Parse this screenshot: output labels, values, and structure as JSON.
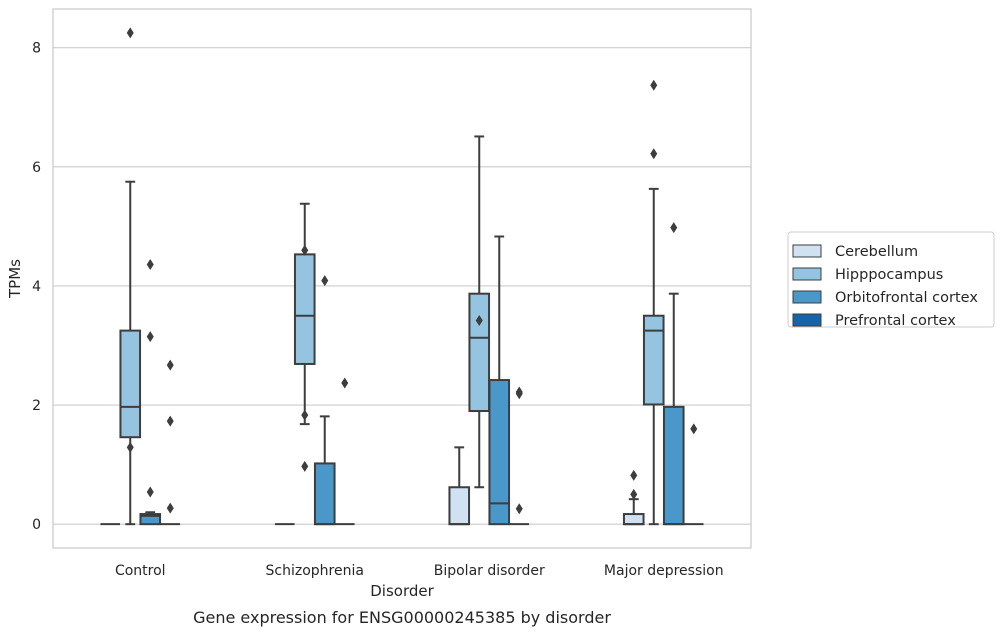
{
  "chart_data": {
    "type": "boxplot",
    "caption": "Gene expression for ENSG00000245385 by disorder",
    "xlabel": "Disorder",
    "ylabel": "TPMs",
    "ylim": [
      -0.4,
      8.65
    ],
    "yticks": [
      0,
      2,
      4,
      6,
      8
    ],
    "grid": "horizontal",
    "legend_position": "right",
    "categories": [
      "Control",
      "Schizophrenia",
      "Bipolar disorder",
      "Major depression"
    ],
    "series": [
      {
        "name": "Cerebellum",
        "color": "#d0e1f2",
        "boxes": [
          {
            "q1": 0,
            "median": 0,
            "q3": 0,
            "whisker_low": 0,
            "whisker_high": 0,
            "outliers": []
          },
          {
            "q1": 0,
            "median": 0,
            "q3": 0,
            "whisker_low": 0,
            "whisker_high": 0,
            "outliers": []
          },
          {
            "q1": 0,
            "median": 0,
            "q3": 0.62,
            "whisker_low": 0,
            "whisker_high": 1.29,
            "outliers": []
          },
          {
            "q1": 0,
            "median": 0,
            "q3": 0.17,
            "whisker_low": 0,
            "whisker_high": 0.42,
            "outliers": [
              0.5,
              0.82
            ]
          }
        ]
      },
      {
        "name": "Hipppocampus",
        "color": "#94c4df",
        "boxes": [
          {
            "q1": 1.46,
            "median": 1.97,
            "q3": 3.25,
            "whisker_low": 0,
            "whisker_high": 5.75,
            "outliers": [
              1.29,
              8.25
            ]
          },
          {
            "q1": 2.69,
            "median": 3.5,
            "q3": 4.53,
            "whisker_low": 1.68,
            "whisker_high": 5.38,
            "outliers": [
              0.97,
              1.83,
              4.6
            ]
          },
          {
            "q1": 1.9,
            "median": 3.13,
            "q3": 3.87,
            "whisker_low": 0.62,
            "whisker_high": 6.51,
            "outliers": [
              3.42
            ]
          },
          {
            "q1": 2.01,
            "median": 3.25,
            "q3": 3.5,
            "whisker_low": 0,
            "whisker_high": 5.63,
            "outliers": [
              6.22,
              7.37
            ]
          }
        ]
      },
      {
        "name": "Orbitofrontal cortex",
        "color": "#4a98c9",
        "boxes": [
          {
            "q1": 0,
            "median": 0.14,
            "q3": 0.17,
            "whisker_low": 0,
            "whisker_high": 0.2,
            "outliers": [
              0.54,
              3.15,
              4.36
            ]
          },
          {
            "q1": 0,
            "median": 0,
            "q3": 1.02,
            "whisker_low": 0,
            "whisker_high": 1.81,
            "outliers": [
              4.09
            ]
          },
          {
            "q1": 0,
            "median": 0.35,
            "q3": 2.42,
            "whisker_low": 0,
            "whisker_high": 4.83,
            "outliers": []
          },
          {
            "q1": 0,
            "median": 0,
            "q3": 1.97,
            "whisker_low": 0,
            "whisker_high": 3.87,
            "outliers": [
              4.98
            ]
          }
        ]
      },
      {
        "name": "Prefrontal cortex",
        "color": "#1764ab",
        "boxes": [
          {
            "q1": 0,
            "median": 0,
            "q3": 0,
            "whisker_low": 0,
            "whisker_high": 0,
            "outliers": [
              0.27,
              1.73,
              2.67
            ]
          },
          {
            "q1": 0,
            "median": 0,
            "q3": 0,
            "whisker_low": 0,
            "whisker_high": 0,
            "outliers": [
              2.37
            ]
          },
          {
            "q1": 0,
            "median": 0,
            "q3": 0,
            "whisker_low": 0,
            "whisker_high": 0,
            "outliers": [
              0.26,
              2.19,
              2.22
            ]
          },
          {
            "q1": 0,
            "median": 0,
            "q3": 0,
            "whisker_low": 0,
            "whisker_high": 0,
            "outliers": [
              1.6
            ]
          }
        ]
      }
    ]
  }
}
